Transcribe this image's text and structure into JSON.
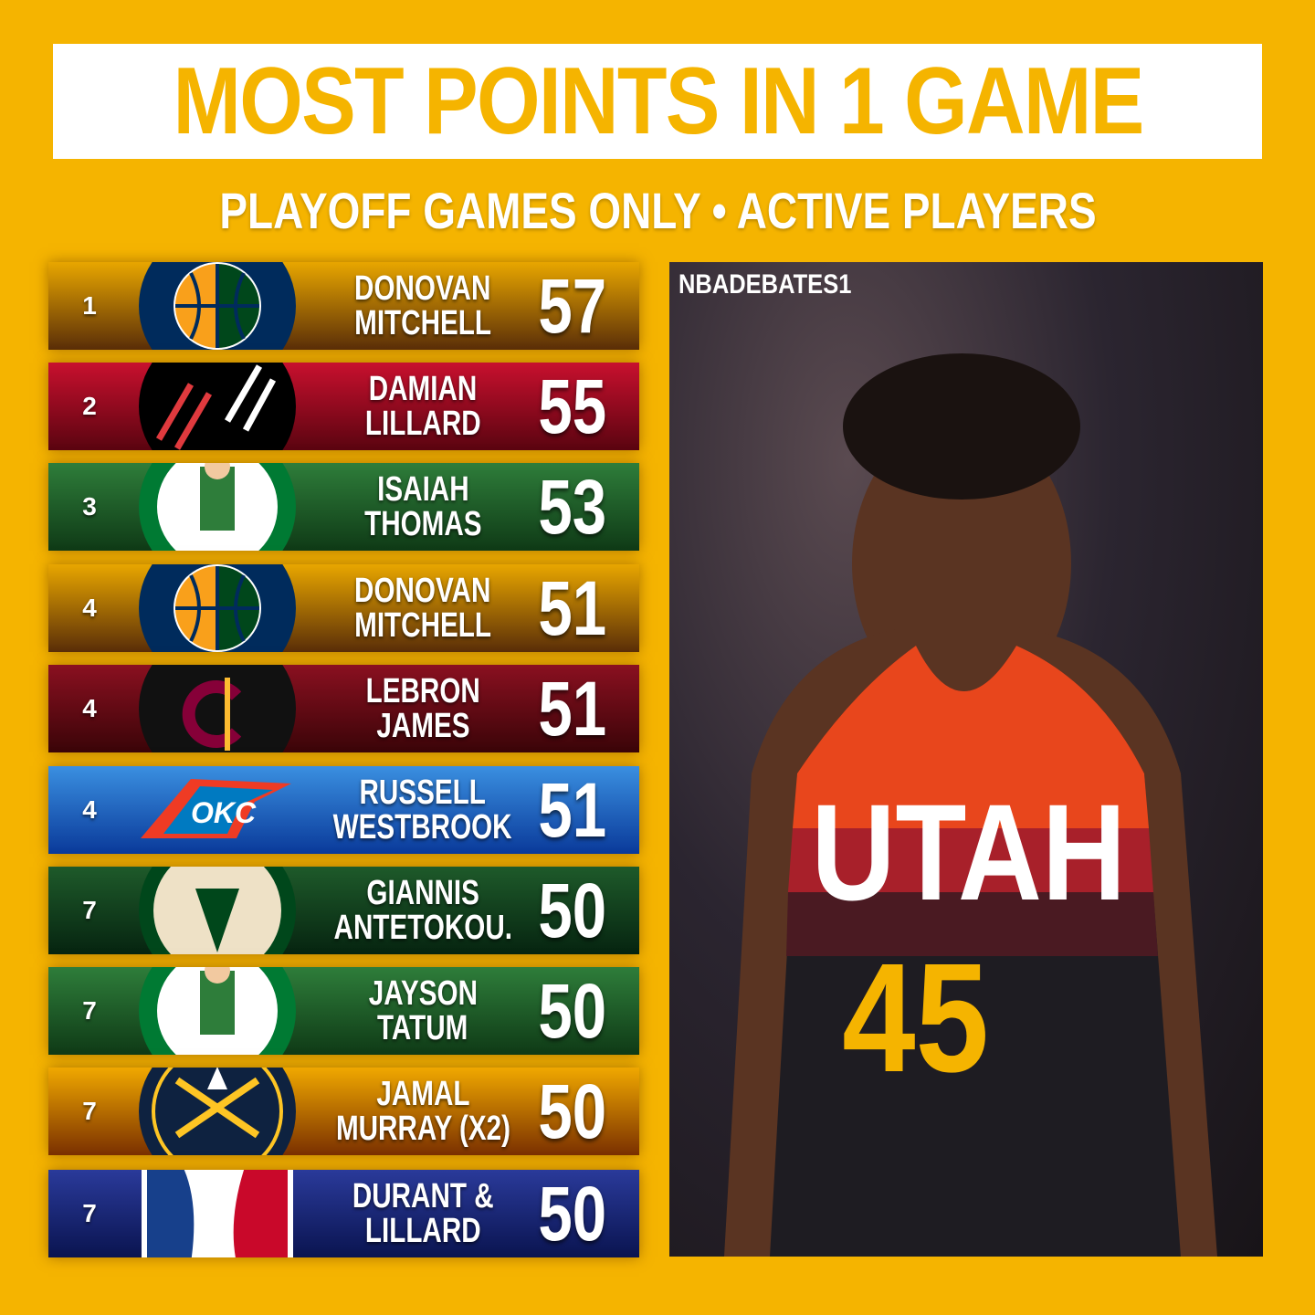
{
  "title": "MOST POINTS IN 1 GAME",
  "subtitle": "PLAYOFF GAMES ONLY • ACTIVE PLAYERS",
  "watermark": "NBADEBATES1",
  "photo": {
    "jersey_city": "UTAH",
    "jersey_number": "45"
  },
  "rows": [
    {
      "rank": "1",
      "line1": "DONOVAN",
      "line2": "MITCHELL",
      "points": "57",
      "team_logo": "jazz-logo",
      "bg": [
        "#e8a600",
        "#5a2e08"
      ]
    },
    {
      "rank": "2",
      "line1": "DAMIAN",
      "line2": "LILLARD",
      "points": "55",
      "team_logo": "blazers-logo",
      "bg": [
        "#c8102e",
        "#5a0410"
      ]
    },
    {
      "rank": "3",
      "line1": "ISAIAH",
      "line2": "THOMAS",
      "points": "53",
      "team_logo": "celtics-logo",
      "bg": [
        "#2e7d3a",
        "#0f3a16"
      ]
    },
    {
      "rank": "4",
      "line1": "DONOVAN",
      "line2": "MITCHELL",
      "points": "51",
      "team_logo": "jazz-logo",
      "bg": [
        "#e8a600",
        "#5a2e08"
      ]
    },
    {
      "rank": "4",
      "line1": "LEBRON",
      "line2": "JAMES",
      "points": "51",
      "team_logo": "cavaliers-logo",
      "bg": [
        "#8a1020",
        "#3a0408"
      ]
    },
    {
      "rank": "4",
      "line1": "RUSSELL",
      "line2": "WESTBROOK",
      "points": "51",
      "team_logo": "thunder-logo",
      "bg": [
        "#3a8fe0",
        "#0a3a9a"
      ]
    },
    {
      "rank": "7",
      "line1": "GIANNIS",
      "line2": "ANTETOKOU.",
      "points": "50",
      "team_logo": "bucks-logo",
      "bg": [
        "#1e5a2a",
        "#062410"
      ]
    },
    {
      "rank": "7",
      "line1": "JAYSON",
      "line2": "TATUM",
      "points": "50",
      "team_logo": "celtics-logo",
      "bg": [
        "#2e7d3a",
        "#0f3a16"
      ]
    },
    {
      "rank": "7",
      "line1": "JAMAL",
      "line2": "MURRAY (X2)",
      "points": "50",
      "team_logo": "nuggets-logo",
      "bg": [
        "#f0a800",
        "#7a3000"
      ]
    },
    {
      "rank": "7",
      "line1": "DURANT &",
      "line2": "LILLARD",
      "points": "50",
      "team_logo": "nba-logo",
      "bg": [
        "#2a3a9a",
        "#0a1450"
      ]
    }
  ]
}
